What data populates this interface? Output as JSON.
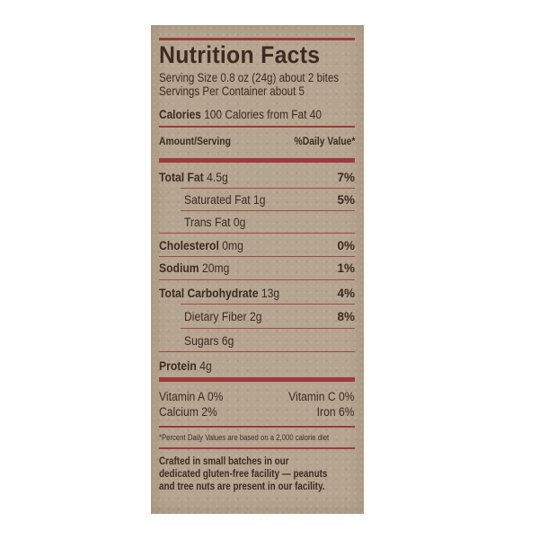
{
  "title": "Nutrition Facts",
  "serving": {
    "size_label": "Serving Size",
    "size_value": "0.8 oz (24g) about 2 bites",
    "per_container_label": "Servings Per Container",
    "per_container_value": "about 5"
  },
  "calories": {
    "label": "Calories",
    "value": "100",
    "from_fat_label": "Calories from Fat",
    "from_fat_value": "40"
  },
  "header": {
    "amount": "Amount/Serving",
    "dv": "%Daily Value*"
  },
  "nutrients": [
    {
      "name": "Total Fat",
      "amount": "4.5g",
      "dv": "7%"
    },
    {
      "name": "Saturated Fat",
      "amount": "1g",
      "dv": "5%"
    },
    {
      "name": "Trans Fat",
      "amount": "0g",
      "dv": ""
    },
    {
      "name": "Cholesterol",
      "amount": "0mg",
      "dv": "0%"
    },
    {
      "name": "Sodium",
      "amount": "20mg",
      "dv": "1%"
    },
    {
      "name": "Total Carbohydrate",
      "amount": "13g",
      "dv": "4%"
    },
    {
      "name": "Dietary Fiber",
      "amount": "2g",
      "dv": "8%"
    },
    {
      "name": "Sugars",
      "amount": "6g",
      "dv": ""
    },
    {
      "name": "Protein",
      "amount": "4g",
      "dv": ""
    }
  ],
  "vitamins": [
    {
      "name": "Vitamin A",
      "dv": "0%"
    },
    {
      "name": "Vitamin C",
      "dv": "0%"
    },
    {
      "name": "Calcium",
      "dv": "2%"
    },
    {
      "name": "Iron",
      "dv": "6%"
    }
  ],
  "footnote": "*Percent Daily Values are based on a 2,000 calorie diet",
  "allergen": {
    "line1": "Crafted in small batches in our",
    "line2": "dedicated gluten-free facility — peanuts",
    "line3": "and tree nuts are present in our facility."
  },
  "colors": {
    "panel": "#b5a48f",
    "text": "#3d2a21",
    "rule": "#9b3a3f"
  }
}
